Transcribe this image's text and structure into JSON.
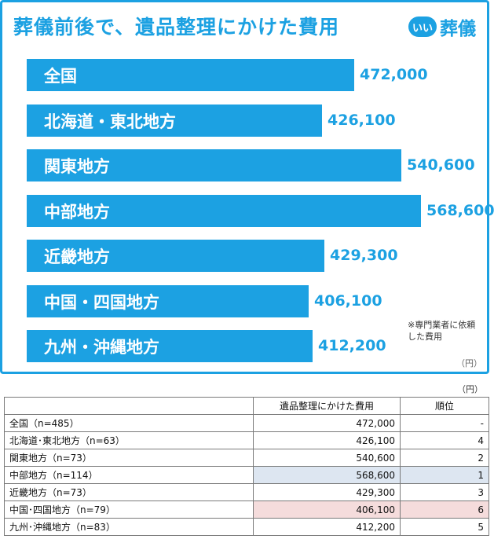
{
  "header": {
    "title": "葬儀前後で、遺品整理にかけた費用",
    "logo_badge": "いい",
    "logo_text": "葬儀"
  },
  "note": "※専門業者に依頼した費用",
  "unit_inner": "（円）",
  "unit_outer": "（円）",
  "colors": {
    "bar": "#1ca1e2",
    "highlight_max": "#dde6f1",
    "highlight_min": "#f5dcdc"
  },
  "chart_data": {
    "type": "bar",
    "orientation": "horizontal",
    "title": "葬儀前後で、遺品整理にかけた費用",
    "categories": [
      "全国",
      "北海道・東北地方",
      "関東地方",
      "中部地方",
      "近畿地方",
      "中国・四国地方",
      "九州・沖縄地方"
    ],
    "values": [
      472000,
      426100,
      540600,
      568600,
      429300,
      406100,
      412200
    ],
    "value_labels": [
      "472,000",
      "426,100",
      "540,600",
      "568,600",
      "429,300",
      "406,100",
      "412,200"
    ],
    "unit": "円",
    "xlim": [
      0,
      568600
    ]
  },
  "table": {
    "headers": [
      "",
      "遺品整理にかけた費用",
      "順位"
    ],
    "rows": [
      {
        "region": "全国（n=485）",
        "cost": "472,000",
        "rank": "-",
        "highlight": ""
      },
      {
        "region": "北海道･東北地方（n=63）",
        "cost": "426,100",
        "rank": "4",
        "highlight": ""
      },
      {
        "region": "関東地方（n=73）",
        "cost": "540,600",
        "rank": "2",
        "highlight": ""
      },
      {
        "region": "中部地方（n=114）",
        "cost": "568,600",
        "rank": "1",
        "highlight": "blue"
      },
      {
        "region": "近畿地方（n=73）",
        "cost": "429,300",
        "rank": "3",
        "highlight": ""
      },
      {
        "region": "中国･四国地方（n=79）",
        "cost": "406,100",
        "rank": "6",
        "highlight": "red"
      },
      {
        "region": "九州･沖縄地方（n=83）",
        "cost": "412,200",
        "rank": "5",
        "highlight": ""
      }
    ]
  }
}
